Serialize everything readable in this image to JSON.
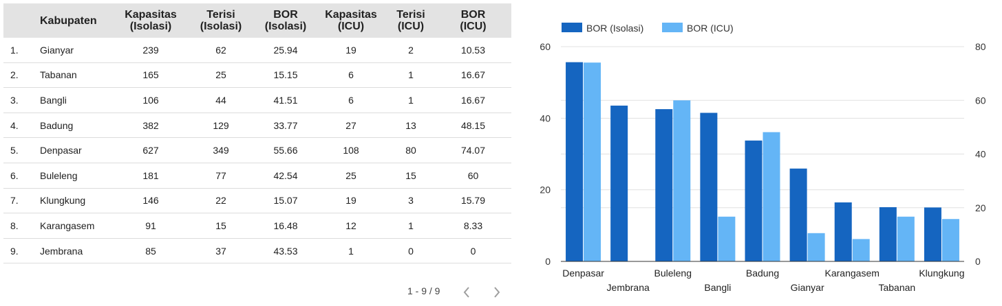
{
  "table": {
    "headers": {
      "name": "Kabupaten",
      "kap_iso": [
        "Kapasitas",
        "(Isolasi)"
      ],
      "ter_iso": [
        "Terisi",
        "(Isolasi)"
      ],
      "bor_iso": [
        "BOR",
        "(Isolasi)"
      ],
      "kap_icu": [
        "Kapasitas",
        "(ICU)"
      ],
      "ter_icu": [
        "Terisi",
        "(ICU)"
      ],
      "bor_icu": [
        "BOR",
        "(ICU)"
      ]
    },
    "rows": [
      {
        "idx": "1.",
        "name": "Gianyar",
        "kap_iso": "239",
        "ter_iso": "62",
        "bor_iso": "25.94",
        "kap_icu": "19",
        "ter_icu": "2",
        "bor_icu": "10.53"
      },
      {
        "idx": "2.",
        "name": "Tabanan",
        "kap_iso": "165",
        "ter_iso": "25",
        "bor_iso": "15.15",
        "kap_icu": "6",
        "ter_icu": "1",
        "bor_icu": "16.67"
      },
      {
        "idx": "3.",
        "name": "Bangli",
        "kap_iso": "106",
        "ter_iso": "44",
        "bor_iso": "41.51",
        "kap_icu": "6",
        "ter_icu": "1",
        "bor_icu": "16.67"
      },
      {
        "idx": "4.",
        "name": "Badung",
        "kap_iso": "382",
        "ter_iso": "129",
        "bor_iso": "33.77",
        "kap_icu": "27",
        "ter_icu": "13",
        "bor_icu": "48.15"
      },
      {
        "idx": "5.",
        "name": "Denpasar",
        "kap_iso": "627",
        "ter_iso": "349",
        "bor_iso": "55.66",
        "kap_icu": "108",
        "ter_icu": "80",
        "bor_icu": "74.07"
      },
      {
        "idx": "6.",
        "name": "Buleleng",
        "kap_iso": "181",
        "ter_iso": "77",
        "bor_iso": "42.54",
        "kap_icu": "25",
        "ter_icu": "15",
        "bor_icu": "60"
      },
      {
        "idx": "7.",
        "name": "Klungkung",
        "kap_iso": "146",
        "ter_iso": "22",
        "bor_iso": "15.07",
        "kap_icu": "19",
        "ter_icu": "3",
        "bor_icu": "15.79"
      },
      {
        "idx": "8.",
        "name": "Karangasem",
        "kap_iso": "91",
        "ter_iso": "15",
        "bor_iso": "16.48",
        "kap_icu": "12",
        "ter_icu": "1",
        "bor_icu": "8.33"
      },
      {
        "idx": "9.",
        "name": "Jembrana",
        "kap_iso": "85",
        "ter_iso": "37",
        "bor_iso": "43.53",
        "kap_icu": "1",
        "ter_icu": "0",
        "bor_icu": "0"
      }
    ]
  },
  "pagination": {
    "label": "1 - 9 / 9",
    "prev_icon": "chevron-left-icon",
    "next_icon": "chevron-right-icon"
  },
  "chart_data": {
    "type": "bar",
    "categories": [
      "Denpasar",
      "Jembrana",
      "Buleleng",
      "Bangli",
      "Badung",
      "Gianyar",
      "Karangasem",
      "Tabanan",
      "Klungkung"
    ],
    "series": [
      {
        "name": "BOR (Isolasi)",
        "axis": "left",
        "color": "#1565c0",
        "values": [
          55.66,
          43.53,
          42.54,
          41.51,
          33.77,
          25.94,
          16.48,
          15.15,
          15.07
        ]
      },
      {
        "name": "BOR (ICU)",
        "axis": "right",
        "color": "#64b5f6",
        "values": [
          74.07,
          0,
          60,
          16.67,
          48.15,
          10.53,
          8.33,
          16.67,
          15.79
        ]
      }
    ],
    "y_left": {
      "range": [
        0,
        60
      ],
      "ticks": [
        0,
        20,
        40,
        60
      ]
    },
    "y_right": {
      "range": [
        0,
        80
      ],
      "ticks": [
        0,
        20,
        40,
        60,
        80
      ]
    },
    "grid": true,
    "legend": "top-left",
    "grid_color": "#e0e0e0",
    "axis_color": "#333333"
  }
}
